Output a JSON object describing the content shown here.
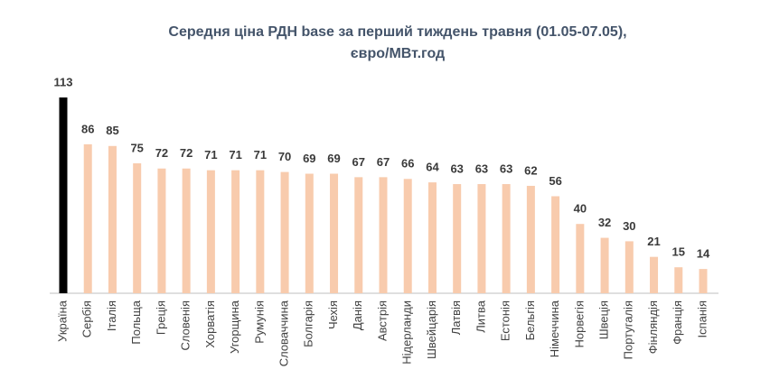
{
  "chart_data": {
    "type": "bar",
    "title": [
      "Середня ціна РДН base за перший тиждень травня (01.05-07.05),",
      "євро/МВт.год"
    ],
    "categories": [
      "Україна",
      "Сербія",
      "Італія",
      "Польща",
      "Греція",
      "Словенія",
      "Хорватія",
      "Угорщина",
      "Румунія",
      "Словаччина",
      "Болгарія",
      "Чехія",
      "Данія",
      "Австрія",
      "Нідерланди",
      "Швейцарія",
      "Латвія",
      "Литва",
      "Естонія",
      "Бельгія",
      "Німеччина",
      "Норвегія",
      "Швеція",
      "Португалія",
      "Фінляндія",
      "Франція",
      "Іспанія"
    ],
    "values": [
      113,
      86,
      85,
      75,
      72,
      72,
      71,
      71,
      71,
      70,
      69,
      69,
      67,
      67,
      66,
      64,
      63,
      63,
      63,
      62,
      56,
      40,
      32,
      30,
      21,
      15,
      14
    ],
    "colors": [
      "#000000",
      "#f8cbad",
      "#f8cbad",
      "#f8cbad",
      "#f8cbad",
      "#f8cbad",
      "#f8cbad",
      "#f8cbad",
      "#f8cbad",
      "#f8cbad",
      "#f8cbad",
      "#f8cbad",
      "#f8cbad",
      "#f8cbad",
      "#f8cbad",
      "#f8cbad",
      "#f8cbad",
      "#f8cbad",
      "#f8cbad",
      "#f8cbad",
      "#f8cbad",
      "#f8cbad",
      "#f8cbad",
      "#f8cbad",
      "#f8cbad",
      "#f8cbad",
      "#f8cbad"
    ]
  }
}
